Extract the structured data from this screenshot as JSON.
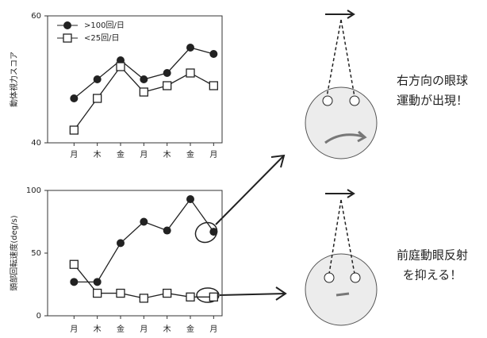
{
  "chart_data": [
    {
      "type": "line",
      "ylabel": "動体視力スコア",
      "categories": [
        "月",
        "木",
        "金",
        "月",
        "木",
        "金",
        "月"
      ],
      "series": [
        {
          "name": ">100回/日",
          "color": "#222222",
          "marker": "circle",
          "values": [
            47,
            50,
            53,
            50,
            51,
            55,
            54
          ]
        },
        {
          "name": "<25回/日",
          "color": "#222222",
          "marker": "square",
          "values": [
            42,
            47,
            52,
            48,
            49,
            51,
            49
          ]
        }
      ],
      "ylim": [
        40,
        60
      ],
      "yticks": [
        40,
        60
      ],
      "legend": "upper left"
    },
    {
      "type": "line",
      "ylabel": "頭部回転速度(deg/s)",
      "categories": [
        "月",
        "木",
        "金",
        "月",
        "木",
        "金",
        "月"
      ],
      "series": [
        {
          "name": ">100回/日",
          "color": "#222222",
          "marker": "circle",
          "values": [
            27,
            27,
            58,
            75,
            68,
            93,
            67
          ]
        },
        {
          "name": "<25回/日",
          "color": "#222222",
          "marker": "square",
          "values": [
            41,
            18,
            18,
            14,
            18,
            15,
            15
          ]
        }
      ],
      "ylim": [
        0,
        100
      ],
      "yticks": [
        0,
        50,
        100
      ]
    }
  ],
  "diagram": {
    "top_text": [
      "右方向の眼球",
      "運動が出現！"
    ],
    "bottom_text": [
      "前庭動眼反射",
      "を抑える！"
    ]
  }
}
